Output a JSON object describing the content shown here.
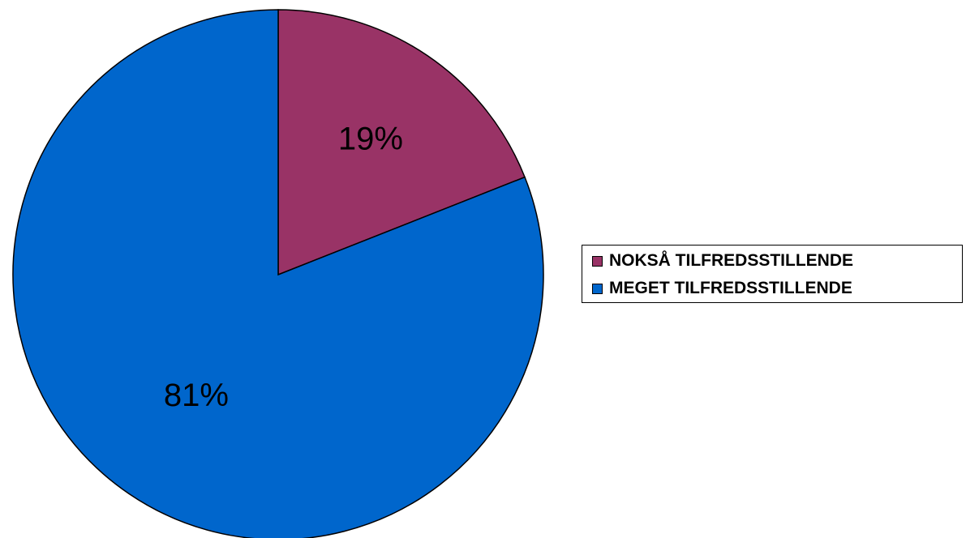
{
  "chart_data": {
    "type": "pie",
    "title": "",
    "legend_position": "right",
    "slices": [
      {
        "name": "NOKSÅ TILFREDSSTILLENDE",
        "value": 19,
        "label": "19%",
        "color": "#993366"
      },
      {
        "name": "MEGET TILFREDSSTILLENDE",
        "value": 81,
        "label": "81%",
        "color": "#0066CC"
      }
    ]
  }
}
